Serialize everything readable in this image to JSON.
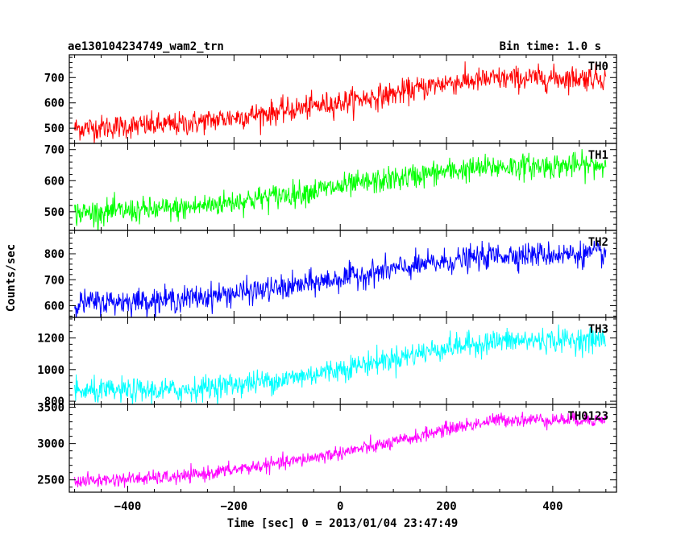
{
  "header": {
    "title": "ae130104234749_wam2_trn",
    "bin_time": "Bin time: 1.0 s"
  },
  "chart_data": {
    "type": "line",
    "xlabel": "Time [sec] 0 = 2013/01/04 23:47:49",
    "ylabel": "Counts/sec",
    "xlim": [
      -510,
      520
    ],
    "x_ticks": [
      -400,
      -200,
      0,
      200,
      400
    ],
    "x_tick_labels": [
      "−400",
      "−200",
      "0",
      "200",
      "400"
    ],
    "x_range_data": [
      -500,
      500
    ],
    "grid": false,
    "panels": [
      {
        "name": "TH0",
        "color": "#ff0000",
        "ylim": [
          440,
          790
        ],
        "yticks": [
          500,
          600,
          700
        ],
        "ytick_labels": [
          "500",
          "600",
          "700"
        ],
        "trend_x": [
          -500,
          -300,
          -100,
          100,
          200,
          300,
          500
        ],
        "trend_y": [
          500,
          515,
          570,
          635,
          680,
          695,
          700
        ],
        "noise_sd": 24
      },
      {
        "name": "TH1",
        "color": "#00ff00",
        "ylim": [
          440,
          720
        ],
        "yticks": [
          500,
          600,
          700
        ],
        "ytick_labels": [
          "500",
          "600",
          "700"
        ],
        "trend_x": [
          -500,
          -300,
          -100,
          100,
          200,
          300,
          500
        ],
        "trend_y": [
          495,
          510,
          555,
          605,
          630,
          645,
          650
        ],
        "noise_sd": 20
      },
      {
        "name": "TH2",
        "color": "#0000ff",
        "ylim": [
          555,
          890
        ],
        "yticks": [
          600,
          700,
          800
        ],
        "ytick_labels": [
          "600",
          "700",
          "800"
        ],
        "trend_x": [
          -500,
          -300,
          -100,
          100,
          200,
          300,
          500
        ],
        "trend_y": [
          610,
          625,
          670,
          740,
          770,
          795,
          800
        ],
        "noise_sd": 24
      },
      {
        "name": "TH3",
        "color": "#00ffff",
        "ylim": [
          780,
          1330
        ],
        "yticks": [
          800,
          1000,
          1200
        ],
        "ytick_labels": [
          "800",
          "1000",
          "1200"
        ],
        "trend_x": [
          -500,
          -300,
          -100,
          100,
          200,
          300,
          500
        ],
        "trend_y": [
          860,
          870,
          940,
          1070,
          1140,
          1180,
          1190
        ],
        "noise_sd": 38
      },
      {
        "name": "TH0123",
        "color": "#ff00ff",
        "ylim": [
          2330,
          3540
        ],
        "yticks": [
          2500,
          3000,
          3500
        ],
        "ytick_labels": [
          "2500",
          "3000",
          "3500"
        ],
        "trend_x": [
          -500,
          -300,
          -100,
          100,
          200,
          300,
          500
        ],
        "trend_y": [
          2480,
          2540,
          2740,
          3010,
          3200,
          3330,
          3330
        ],
        "noise_sd": 48
      }
    ]
  }
}
